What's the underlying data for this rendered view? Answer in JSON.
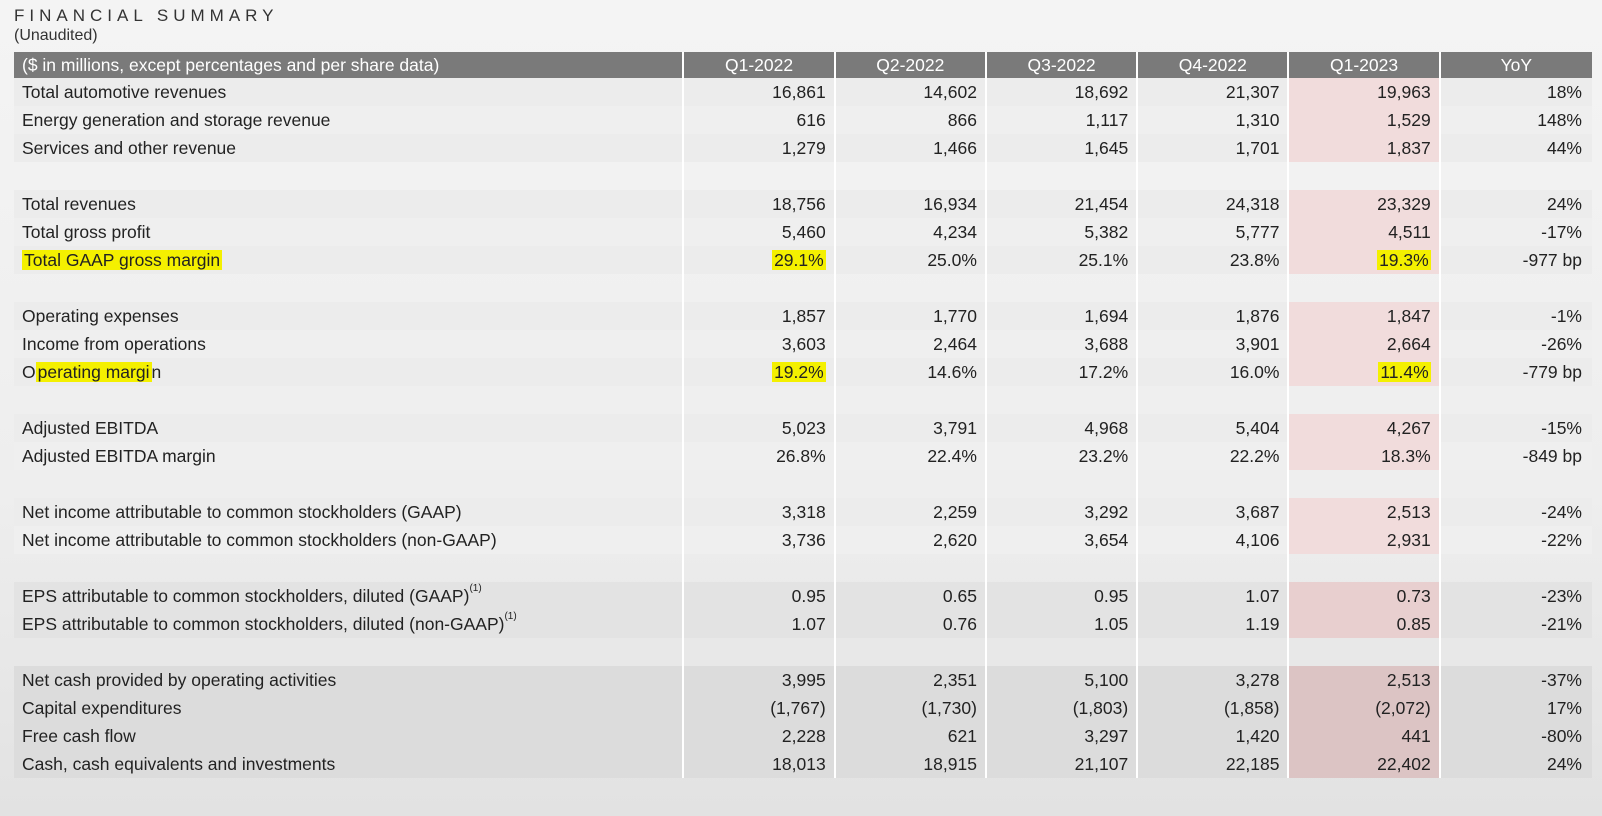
{
  "title": "FINANCIAL SUMMARY",
  "subtitle": "(Unaudited)",
  "header": {
    "label": "($ in millions, except percentages and per share data)",
    "columns": [
      "Q1-2022",
      "Q2-2022",
      "Q3-2022",
      "Q4-2022",
      "Q1-2023",
      "YoY"
    ]
  },
  "groups": [
    {
      "rows": [
        {
          "label": "Total automotive revenues",
          "values": [
            "16,861",
            "14,602",
            "18,692",
            "21,307",
            "19,963",
            "18%"
          ]
        },
        {
          "label": "Energy generation and storage revenue",
          "values": [
            "616",
            "866",
            "1,117",
            "1,310",
            "1,529",
            "148%"
          ]
        },
        {
          "label": "Services and other revenue",
          "values": [
            "1,279",
            "1,466",
            "1,645",
            "1,701",
            "1,837",
            "44%"
          ]
        }
      ]
    },
    {
      "rows": [
        {
          "label": "Total revenues",
          "values": [
            "18,756",
            "16,934",
            "21,454",
            "24,318",
            "23,329",
            "24%"
          ]
        },
        {
          "label": "Total gross profit",
          "values": [
            "5,460",
            "4,234",
            "5,382",
            "5,777",
            "4,511",
            "-17%"
          ]
        },
        {
          "label": "Total GAAP gross margin",
          "values": [
            "29.1%",
            "25.0%",
            "25.1%",
            "23.8%",
            "19.3%",
            "-977 bp"
          ]
        }
      ]
    },
    {
      "rows": [
        {
          "label": "Operating expenses",
          "values": [
            "1,857",
            "1,770",
            "1,694",
            "1,876",
            "1,847",
            "-1%"
          ]
        },
        {
          "label": "Income from operations",
          "values": [
            "3,603",
            "2,464",
            "3,688",
            "3,901",
            "2,664",
            "-26%"
          ]
        },
        {
          "label_pre": "O",
          "label_mark": "perating margi",
          "label_post": "n",
          "values": [
            "19.2%",
            "14.6%",
            "17.2%",
            "16.0%",
            "11.4%",
            "-779 bp"
          ]
        }
      ]
    },
    {
      "rows": [
        {
          "label": "Adjusted EBITDA",
          "values": [
            "5,023",
            "3,791",
            "4,968",
            "5,404",
            "4,267",
            "-15%"
          ]
        },
        {
          "label": "Adjusted EBITDA margin",
          "values": [
            "26.8%",
            "22.4%",
            "23.2%",
            "22.2%",
            "18.3%",
            "-849 bp"
          ]
        }
      ]
    },
    {
      "rows": [
        {
          "label": "Net income attributable to common stockholders (GAAP)",
          "values": [
            "3,318",
            "2,259",
            "3,292",
            "3,687",
            "2,513",
            "-24%"
          ]
        },
        {
          "label": "Net income attributable to common stockholders (non-GAAP)",
          "values": [
            "3,736",
            "2,620",
            "3,654",
            "4,106",
            "2,931",
            "-22%"
          ]
        }
      ]
    },
    {
      "rows": [
        {
          "label": "EPS attributable to common stockholders, diluted (GAAP)",
          "sup": "(1)",
          "values": [
            "0.95",
            "0.65",
            "0.95",
            "1.07",
            "0.73",
            "-23%"
          ]
        },
        {
          "label": "EPS attributable to common stockholders, diluted (non-GAAP)",
          "sup": "(1)",
          "values": [
            "1.07",
            "0.76",
            "1.05",
            "1.19",
            "0.85",
            "-21%"
          ]
        }
      ]
    },
    {
      "rows": [
        {
          "label": "Net cash provided by operating activities",
          "values": [
            "3,995",
            "2,351",
            "5,100",
            "3,278",
            "2,513",
            "-37%"
          ]
        },
        {
          "label": "Capital expenditures",
          "values": [
            "(1,767)",
            "(1,730)",
            "(1,803)",
            "(1,858)",
            "(2,072)",
            "17%"
          ]
        },
        {
          "label": "Free cash flow",
          "values": [
            "2,228",
            "621",
            "3,297",
            "1,420",
            "441",
            "-80%"
          ]
        },
        {
          "label": "Cash, cash equivalents and investments",
          "values": [
            "18,013",
            "18,915",
            "21,107",
            "22,185",
            "22,402",
            "24%"
          ]
        }
      ]
    }
  ],
  "colors": {
    "header_bg": "#7a7a7a",
    "highlight_column": "#f1dcdc",
    "marker_yellow": "#f4f000"
  }
}
